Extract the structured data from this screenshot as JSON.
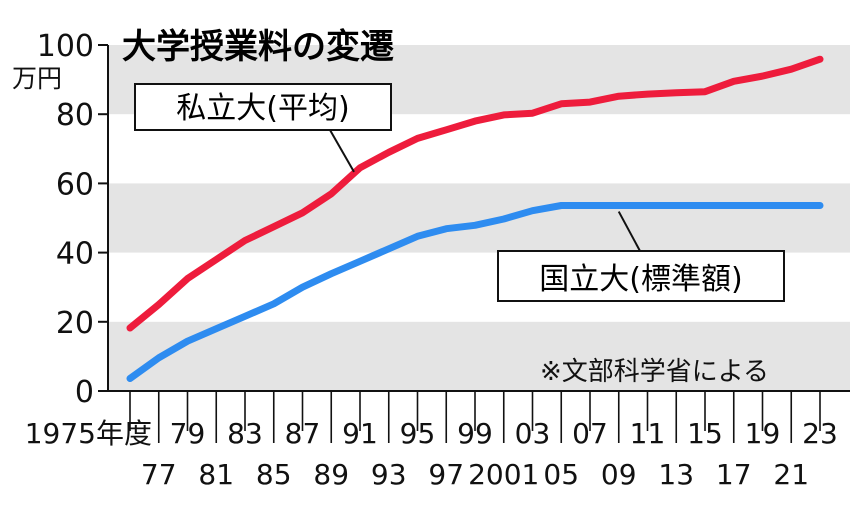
{
  "chart_data": {
    "type": "line",
    "title": "大学授業料の変遷",
    "ylabel": "万円",
    "ylim": [
      0,
      100
    ],
    "yticks": [
      "0",
      "20",
      "40",
      "60",
      "80",
      "100"
    ],
    "grid": "horizontal bands",
    "x_first_label": "1975年度",
    "x_tick_labels_top": [
      "79",
      "83",
      "87",
      "91",
      "95",
      "99",
      "03",
      "07",
      "11",
      "15",
      "19",
      "23"
    ],
    "x_tick_labels_bottom": [
      "77",
      "81",
      "85",
      "89",
      "93",
      "97",
      "2001",
      "05",
      "09",
      "13",
      "17",
      "21"
    ],
    "x": [
      1975,
      1977,
      1979,
      1981,
      1983,
      1985,
      1987,
      1989,
      1991,
      1993,
      1995,
      1997,
      1999,
      2001,
      2003,
      2005,
      2007,
      2009,
      2011,
      2013,
      2015,
      2017,
      2019,
      2021,
      2023
    ],
    "series": [
      {
        "name": "私立大(平均)",
        "color": "#ee1c3c",
        "values": [
          18.2,
          25.0,
          32.5,
          38.0,
          43.5,
          47.5,
          51.5,
          57.0,
          64.5,
          69.0,
          73.0,
          75.5,
          78.0,
          79.8,
          80.3,
          83.0,
          83.5,
          85.2,
          85.8,
          86.2,
          86.5,
          89.5,
          91.0,
          93.0,
          95.9
        ]
      },
      {
        "name": "国立大(標準額)",
        "color": "#2e8cf0",
        "values": [
          3.6,
          9.6,
          14.4,
          18.0,
          21.6,
          25.2,
          30.0,
          33.9,
          37.5,
          41.1,
          44.7,
          46.9,
          47.9,
          49.7,
          52.1,
          53.6,
          53.6,
          53.6,
          53.6,
          53.6,
          53.6,
          53.6,
          53.6,
          53.6,
          53.6
        ]
      }
    ],
    "note": "※文部科学省による"
  }
}
